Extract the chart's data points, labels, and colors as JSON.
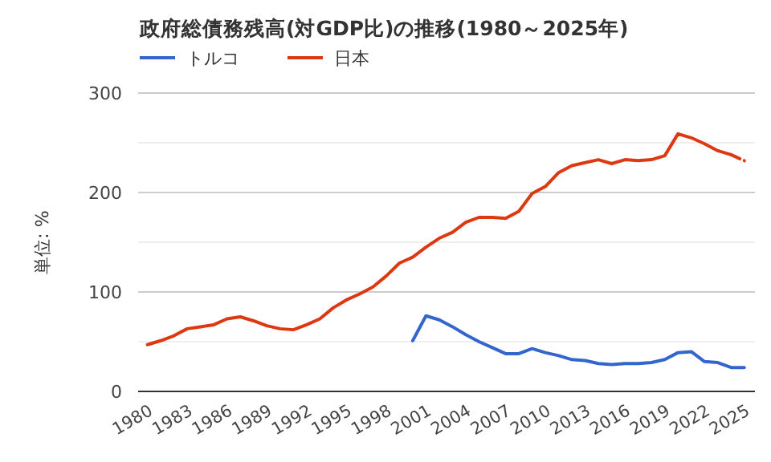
{
  "chart_data": {
    "type": "line",
    "title": "政府総債務残高(対GDP比)の推移(1980～2025年)",
    "ylabel": "単位: %",
    "xlim": [
      1979.3,
      2025.8
    ],
    "xticks": [
      1980,
      1983,
      1986,
      1989,
      1992,
      1995,
      1998,
      2001,
      2004,
      2007,
      2010,
      2013,
      2016,
      2019,
      2022,
      2025
    ],
    "ylim": [
      0,
      300
    ],
    "yticks": [
      0,
      {
        "value": 50,
        "label": null
      },
      100,
      {
        "value": 150,
        "label": null
      },
      200,
      {
        "value": 250,
        "label": null
      },
      300
    ],
    "grid": "y",
    "legend": "top left",
    "marker": "none",
    "series": [
      {
        "name": "トルコ",
        "color": "#3366cc",
        "x": [
          2000,
          2001,
          2002,
          2003,
          2004,
          2005,
          2006,
          2007,
          2008,
          2009,
          2010,
          2011,
          2012,
          2013,
          2014,
          2015,
          2016,
          2017,
          2018,
          2019,
          2020,
          2021,
          2022,
          2023,
          2024,
          2025
        ],
        "values": [
          51,
          76,
          72,
          65,
          57,
          50,
          44,
          38,
          38,
          43,
          39,
          36,
          32,
          31,
          28,
          27,
          28,
          28,
          29,
          32,
          39,
          40,
          30,
          29,
          24,
          24
        ]
      },
      {
        "name": "日本",
        "color": "#dc3912",
        "x": [
          1980,
          1981,
          1982,
          1983,
          1984,
          1985,
          1986,
          1987,
          1988,
          1989,
          1990,
          1991,
          1992,
          1993,
          1994,
          1995,
          1996,
          1997,
          1998,
          1999,
          2000,
          2001,
          2002,
          2003,
          2004,
          2005,
          2006,
          2007,
          2008,
          2009,
          2010,
          2011,
          2012,
          2013,
          2014,
          2015,
          2016,
          2017,
          2018,
          2019,
          2020,
          2021,
          2022,
          2023,
          2024
        ],
        "values": [
          47,
          51,
          56,
          63,
          65,
          67,
          73,
          75,
          71,
          66,
          63,
          62,
          67,
          73,
          84,
          92,
          98,
          105,
          116,
          129,
          135,
          145,
          154,
          160,
          170,
          175,
          175,
          174,
          181,
          199,
          206,
          220,
          227,
          230,
          233,
          229,
          233,
          232,
          233,
          237,
          259,
          255,
          249,
          242,
          238
        ]
      },
      {
        "color": "#dc3912",
        "line_style": "dashed",
        "x": [
          2024,
          2025
        ],
        "values": [
          238,
          232
        ]
      }
    ]
  }
}
